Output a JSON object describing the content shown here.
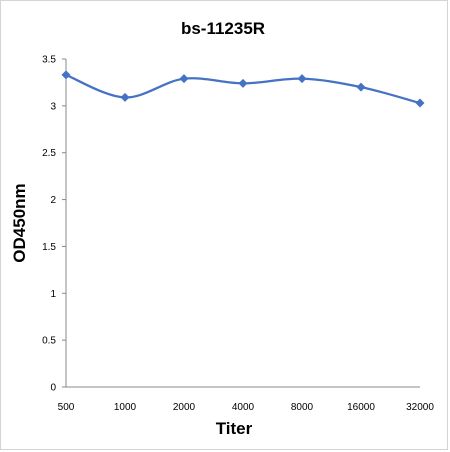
{
  "chart_data": {
    "type": "line",
    "title": "bs-11235R",
    "xlabel": "Titer",
    "ylabel": "OD450nm",
    "categories": [
      "500",
      "1000",
      "2000",
      "4000",
      "8000",
      "16000",
      "32000"
    ],
    "series": [
      {
        "values": [
          3.33,
          3.09,
          3.29,
          3.24,
          3.29,
          3.2,
          3.03
        ]
      }
    ],
    "yticks": [
      "0",
      "0.5",
      "1",
      "1.5",
      "2",
      "2.5",
      "3",
      "3.5"
    ],
    "ylim": [
      0,
      3.5
    ],
    "grid": false,
    "legend": "none",
    "line_color": "#4472C4",
    "marker": "diamond"
  }
}
